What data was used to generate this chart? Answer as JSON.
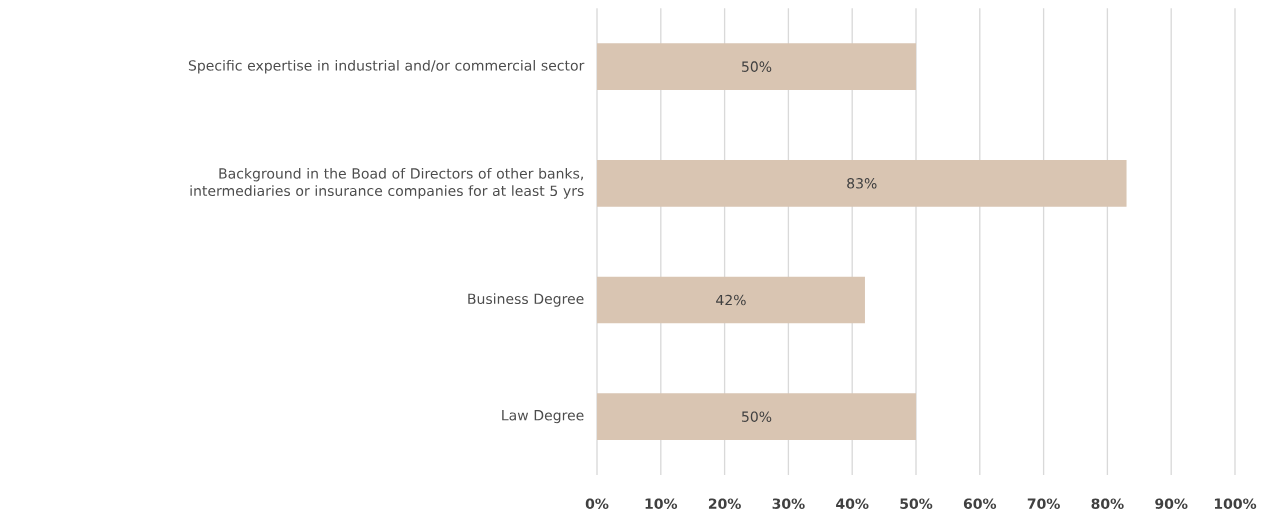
{
  "chart_data": {
    "type": "bar",
    "orientation": "horizontal",
    "categories": [
      "Specific expertise in industrial and/or commercial sector",
      "Background in the Boad of Directors of other banks, intermediaries or insurance companies for at least 5 yrs",
      "Business Degree",
      "Law Degree"
    ],
    "values": [
      50,
      83,
      42,
      50
    ],
    "value_labels": [
      "50%",
      "83%",
      "42%",
      "50%"
    ],
    "color": "#d9c5b2",
    "xlim": [
      0,
      100
    ],
    "xticks": [
      {
        "value": 0,
        "label": "0%"
      },
      {
        "value": 10,
        "label": "10%"
      },
      {
        "value": 20,
        "label": "20%"
      },
      {
        "value": 30,
        "label": "30%"
      },
      {
        "value": 40,
        "label": "40%"
      },
      {
        "value": 50,
        "label": "50%"
      },
      {
        "value": 60,
        "label": "60%"
      },
      {
        "value": 70,
        "label": "70%"
      },
      {
        "value": 80,
        "label": "80%"
      },
      {
        "value": 90,
        "label": "90%"
      },
      {
        "value": 100,
        "label": "100%"
      }
    ],
    "grid": "x"
  }
}
